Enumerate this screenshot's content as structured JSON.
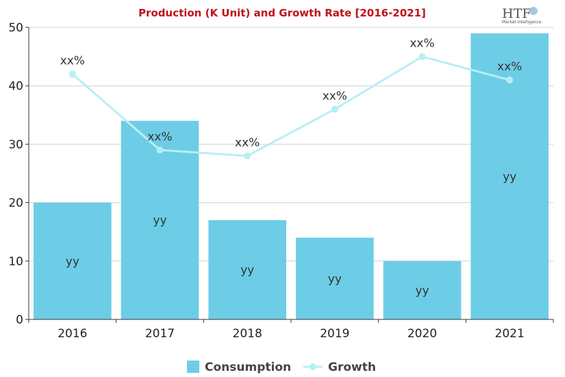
{
  "logo": {
    "main": "HTF",
    "sub": "Market Intelligence"
  },
  "chart_data": {
    "type": "bar",
    "title": "Production (K Unit) and Growth Rate [2016-2021]",
    "categories": [
      "2016",
      "2017",
      "2018",
      "2019",
      "2020",
      "2021"
    ],
    "ylim": [
      0,
      50
    ],
    "yticks": [
      0,
      10,
      20,
      30,
      40,
      50
    ],
    "grid": true,
    "legend_position": "bottom",
    "series": [
      {
        "name": "Consumption",
        "type": "bar",
        "color": "#6dcde6",
        "values": [
          20,
          34,
          17,
          14,
          10,
          49
        ],
        "labels": [
          "yy",
          "yy",
          "yy",
          "yy",
          "yy",
          "yy"
        ]
      },
      {
        "name": "Growth",
        "type": "line",
        "color": "#b8eef5",
        "values": [
          42,
          29,
          28,
          36,
          45,
          41
        ],
        "labels": [
          "xx%",
          "xx%",
          "xx%",
          "xx%",
          "xx%",
          "xx%"
        ]
      }
    ]
  }
}
